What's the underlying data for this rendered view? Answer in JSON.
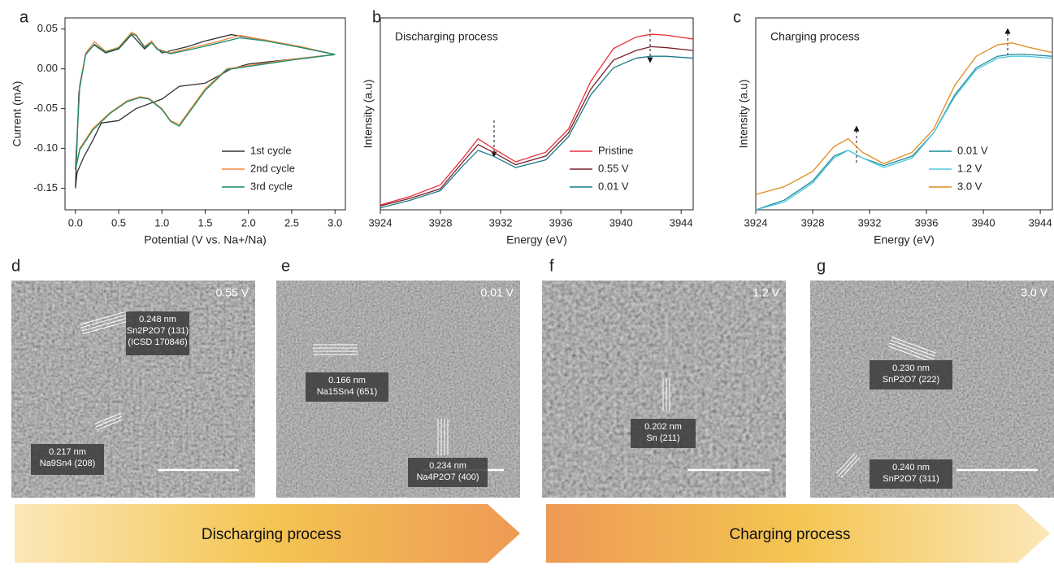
{
  "chart_data": [
    {
      "type": "line",
      "panel_label": "a",
      "xlabel": "Potential (V vs. Na+/Na)",
      "ylabel": "Current (mA)",
      "xlim": [
        -0.12,
        3.12
      ],
      "ylim": [
        -0.177,
        0.064
      ],
      "xticks": [
        {
          "value": 0,
          "label": "0.0"
        },
        0.5,
        {
          "value": 1,
          "label": "1.0"
        },
        1.5,
        {
          "value": 2,
          "label": "2.0"
        },
        2.5,
        {
          "value": 3,
          "label": "3.0"
        }
      ],
      "yticks": [
        0.05,
        {
          "value": 0,
          "label": "0.00"
        },
        -0.05,
        {
          "value": -0.1,
          "label": "-0.10"
        },
        -0.15
      ],
      "legend": "lower-right",
      "series": [
        {
          "name": "1st cycle",
          "color": "#333333",
          "x": [
            3.0,
            2.5,
            2.0,
            1.8,
            1.5,
            1.2,
            1.0,
            0.7,
            0.5,
            0.3,
            0.2,
            0.1,
            0.02,
            0.0,
            0.04,
            0.12,
            0.22,
            0.35,
            0.5,
            0.65,
            0.8,
            0.88,
            1.0,
            1.3,
            1.5,
            1.8,
            2.2,
            2.6,
            3.0
          ],
          "values": [
            0.018,
            0.012,
            0.006,
            0.0,
            -0.018,
            -0.022,
            -0.038,
            -0.05,
            -0.065,
            -0.068,
            -0.09,
            -0.11,
            -0.13,
            -0.15,
            -0.03,
            0.02,
            0.03,
            0.02,
            0.025,
            0.043,
            0.025,
            0.033,
            0.02,
            0.028,
            0.035,
            0.043,
            0.036,
            0.027,
            0.018
          ]
        },
        {
          "name": "2nd cycle",
          "color": "#f08a3c",
          "x": [
            3.0,
            2.5,
            2.0,
            1.75,
            1.5,
            1.3,
            1.2,
            1.1,
            1.0,
            0.85,
            0.75,
            0.6,
            0.4,
            0.2,
            0.05,
            0.0,
            0.05,
            0.12,
            0.22,
            0.35,
            0.5,
            0.65,
            0.7,
            0.8,
            0.88,
            0.95,
            1.1,
            1.4,
            1.6,
            1.9,
            2.2,
            2.6,
            3.0
          ],
          "values": [
            0.018,
            0.012,
            0.004,
            0.0,
            -0.025,
            -0.055,
            -0.07,
            -0.065,
            -0.05,
            -0.037,
            -0.035,
            -0.04,
            -0.055,
            -0.075,
            -0.1,
            -0.125,
            -0.02,
            0.02,
            0.034,
            0.022,
            0.027,
            0.046,
            0.043,
            0.028,
            0.035,
            0.025,
            0.02,
            0.028,
            0.033,
            0.042,
            0.036,
            0.028,
            0.018
          ]
        },
        {
          "name": "3rd cycle",
          "color": "#1a8a6e",
          "x": [
            3.0,
            2.5,
            2.0,
            1.75,
            1.5,
            1.3,
            1.2,
            1.1,
            1.0,
            0.85,
            0.75,
            0.6,
            0.4,
            0.2,
            0.05,
            0.0,
            0.05,
            0.12,
            0.22,
            0.35,
            0.5,
            0.65,
            0.7,
            0.8,
            0.88,
            0.95,
            1.1,
            1.4,
            1.6,
            1.9,
            2.2,
            2.6,
            3.0
          ],
          "values": [
            0.018,
            0.011,
            0.003,
            -0.001,
            -0.027,
            -0.057,
            -0.072,
            -0.066,
            -0.051,
            -0.038,
            -0.036,
            -0.041,
            -0.056,
            -0.077,
            -0.102,
            -0.127,
            -0.022,
            0.018,
            0.031,
            0.021,
            0.026,
            0.044,
            0.042,
            0.027,
            0.033,
            0.024,
            0.019,
            0.026,
            0.031,
            0.039,
            0.035,
            0.027,
            0.018
          ]
        }
      ]
    },
    {
      "type": "line",
      "panel_label": "b",
      "title": "Discharging process",
      "xlabel": "Energy (eV)",
      "ylabel": "Intensity (a.u)",
      "xlim": [
        3924,
        3944.8
      ],
      "ylim": [
        0,
        1
      ],
      "xticks": [
        3924,
        3928,
        3932,
        3936,
        3940,
        3944
      ],
      "legend": "lower-right",
      "x": [
        3924,
        3926,
        3928,
        3929.5,
        3930.5,
        3931.5,
        3933,
        3935,
        3936.5,
        3938,
        3939.5,
        3941,
        3942,
        3943,
        3944.8
      ],
      "series": [
        {
          "name": "Pristine",
          "color": "#e8313a",
          "values": [
            0.025,
            0.07,
            0.13,
            0.27,
            0.37,
            0.32,
            0.25,
            0.3,
            0.42,
            0.67,
            0.84,
            0.9,
            0.915,
            0.91,
            0.89
          ]
        },
        {
          "name": "0.55 V",
          "color": "#7b1f2a",
          "values": [
            0.02,
            0.06,
            0.11,
            0.25,
            0.34,
            0.3,
            0.235,
            0.28,
            0.4,
            0.63,
            0.78,
            0.83,
            0.85,
            0.845,
            0.83
          ]
        },
        {
          "name": "0.01 V",
          "color": "#1a7a8a",
          "values": [
            0.01,
            0.05,
            0.1,
            0.23,
            0.31,
            0.28,
            0.22,
            0.26,
            0.38,
            0.6,
            0.74,
            0.79,
            0.8,
            0.8,
            0.79
          ]
        }
      ]
    },
    {
      "type": "line",
      "panel_label": "c",
      "title": "Charging process",
      "xlabel": "Energy (eV)",
      "ylabel": "Intensity (a.u)",
      "xlim": [
        3924,
        3944.85
      ],
      "ylim": [
        0,
        1
      ],
      "xticks": [
        3924,
        3928,
        3932,
        3936,
        3940,
        3944
      ],
      "legend": "lower-right",
      "x": [
        3924,
        3926,
        3928,
        3929.5,
        3930.5,
        3931.5,
        3933,
        3935,
        3936.5,
        3938,
        3939.5,
        3941,
        3942,
        3943,
        3944.8
      ],
      "series": [
        {
          "name": "0.01 V",
          "color": "#1f8a9a",
          "values": [
            0.0,
            0.05,
            0.15,
            0.28,
            0.31,
            0.27,
            0.23,
            0.28,
            0.4,
            0.6,
            0.74,
            0.8,
            0.81,
            0.81,
            0.8
          ]
        },
        {
          "name": "1.2 V",
          "color": "#4dc8e0",
          "values": [
            0.0,
            0.04,
            0.14,
            0.27,
            0.31,
            0.27,
            0.22,
            0.27,
            0.4,
            0.59,
            0.73,
            0.79,
            0.8,
            0.8,
            0.79
          ]
        },
        {
          "name": "3.0 V",
          "color": "#e08a1e",
          "values": [
            0.08,
            0.12,
            0.2,
            0.33,
            0.37,
            0.3,
            0.24,
            0.3,
            0.42,
            0.65,
            0.8,
            0.86,
            0.87,
            0.85,
            0.82
          ]
        }
      ]
    }
  ],
  "micrographs": [
    {
      "label": "d",
      "voltage": "0.55 V",
      "annotations": [
        {
          "spacing": "0.248 nm",
          "phase": "Sn2P2O7 (131)",
          "note": "(ICSD 170846)"
        },
        {
          "spacing": "0.217 nm",
          "phase": "Na9Sn4 (208)"
        }
      ]
    },
    {
      "label": "e",
      "voltage": "0.01 V",
      "annotations": [
        {
          "spacing": "0.166 nm",
          "phase": "Na15Sn4 (651)"
        },
        {
          "spacing": "0.234 nm",
          "phase": "Na4P2O7 (400)"
        }
      ]
    },
    {
      "label": "f",
      "voltage": "1.2 V",
      "annotations": [
        {
          "spacing": "0.202 nm",
          "phase": "Sn (211)"
        }
      ]
    },
    {
      "label": "g",
      "voltage": "3.0 V",
      "annotations": [
        {
          "spacing": "0.230 nm",
          "phase": "SnP2O7  (222)"
        },
        {
          "spacing": "0.240 nm",
          "phase": "SnP2O7  (311)"
        }
      ]
    }
  ],
  "process_arrows": [
    "Discharging process",
    "Charging process"
  ]
}
